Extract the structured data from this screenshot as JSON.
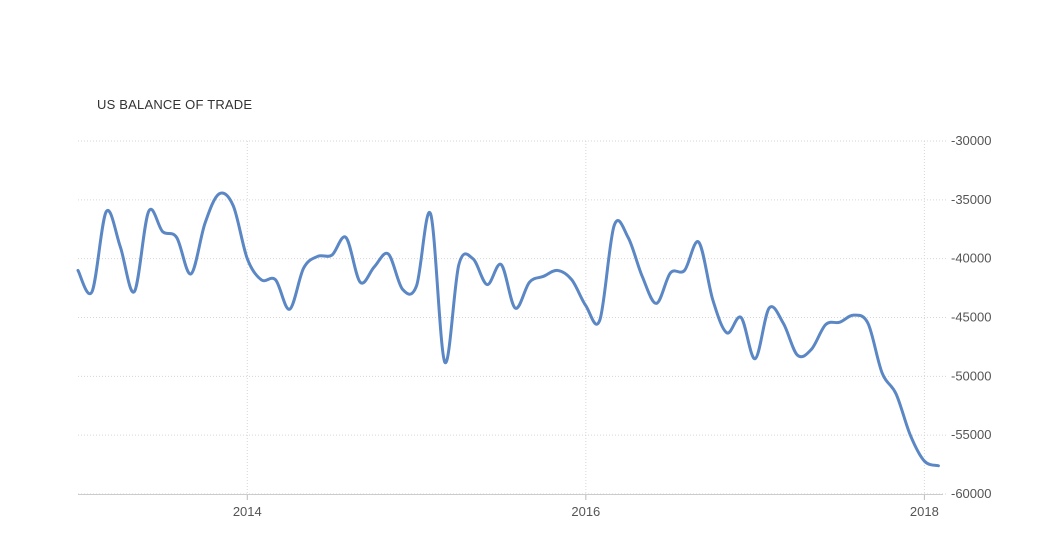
{
  "chart_data": {
    "type": "line",
    "title": "US BALANCE OF TRADE",
    "xlabel": "",
    "ylabel": "",
    "ylim": [
      -60000,
      -30000
    ],
    "y_ticks": [
      -30000,
      -35000,
      -40000,
      -45000,
      -50000,
      -55000,
      -60000
    ],
    "x_ticks": [
      2014,
      2016,
      2018
    ],
    "x_tick_labels": [
      "2014",
      "2016",
      "2018"
    ],
    "xlim": [
      2013.0,
      2018.11
    ],
    "grid": true,
    "line_color": "#5b87c5",
    "series": [
      {
        "x": [
          2013.0,
          2013.083,
          2013.167,
          2013.25,
          2013.333,
          2013.417,
          2013.5,
          2013.583,
          2013.667,
          2013.75,
          2013.833,
          2013.917,
          2014.0,
          2014.083,
          2014.167,
          2014.25,
          2014.333,
          2014.417,
          2014.5,
          2014.583,
          2014.667,
          2014.75,
          2014.833,
          2014.917,
          2015.0,
          2015.083,
          2015.167,
          2015.25,
          2015.333,
          2015.417,
          2015.5,
          2015.583,
          2015.667,
          2015.75,
          2015.833,
          2015.917,
          2016.0,
          2016.083,
          2016.167,
          2016.25,
          2016.333,
          2016.417,
          2016.5,
          2016.583,
          2016.667,
          2016.75,
          2016.833,
          2016.917,
          2017.0,
          2017.083,
          2017.167,
          2017.25,
          2017.333,
          2017.417,
          2017.5,
          2017.583,
          2017.667,
          2017.75,
          2017.833,
          2017.917,
          2018.0,
          2018.083
        ],
        "values": [
          -41000,
          -42800,
          -36000,
          -39000,
          -42800,
          -36000,
          -37700,
          -38200,
          -41300,
          -37000,
          -34500,
          -35500,
          -40000,
          -41800,
          -41800,
          -44300,
          -40800,
          -39800,
          -39700,
          -38200,
          -42000,
          -40700,
          -39600,
          -42600,
          -42300,
          -36200,
          -48800,
          -40500,
          -40000,
          -42200,
          -40500,
          -44200,
          -42000,
          -41500,
          -41000,
          -41800,
          -44000,
          -45200,
          -37200,
          -38200,
          -41500,
          -43800,
          -41200,
          -41000,
          -38600,
          -43500,
          -46300,
          -45000,
          -48500,
          -44200,
          -45500,
          -48200,
          -47700,
          -45600,
          -45400,
          -44800,
          -45500,
          -49700,
          -51500,
          -55000,
          -57200,
          -57600
        ]
      }
    ]
  }
}
